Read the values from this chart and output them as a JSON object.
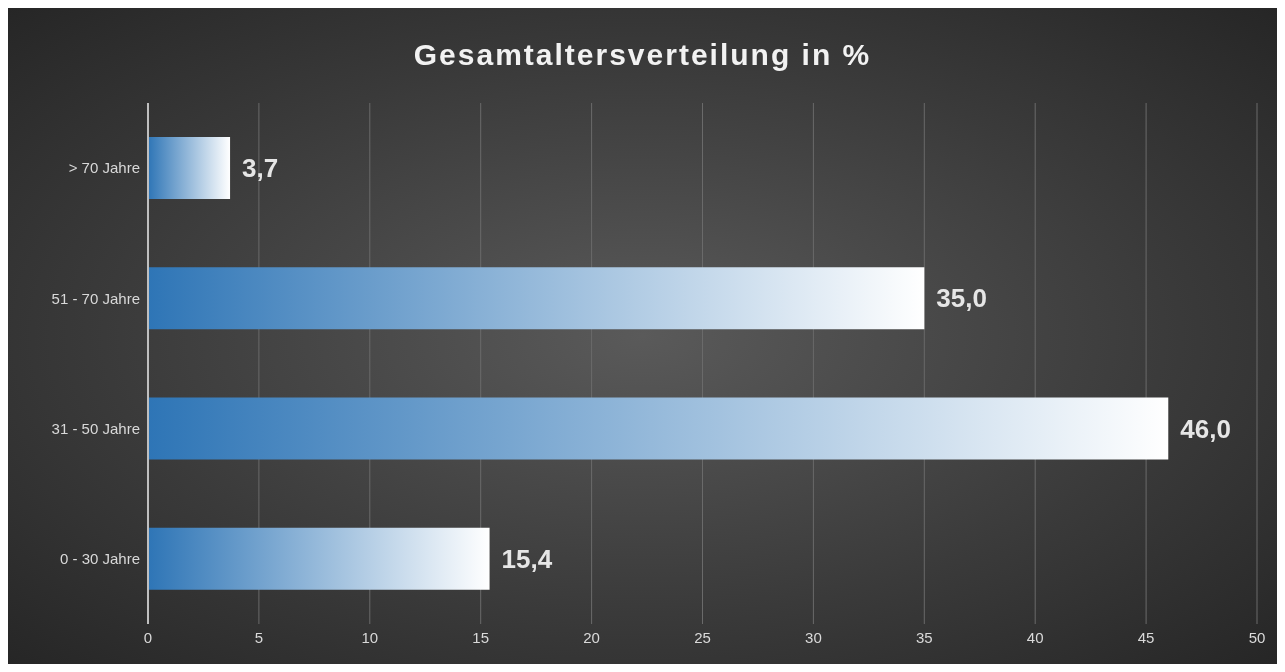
{
  "chart_data": {
    "type": "bar",
    "orientation": "horizontal",
    "title": "Gesamtaltersverteilung in %",
    "categories": [
      "> 70 Jahre",
      "51 - 70 Jahre",
      "31 - 50 Jahre",
      "0 - 30 Jahre"
    ],
    "values": [
      3.7,
      35.0,
      46.0,
      15.4
    ],
    "value_labels": [
      "3,7",
      "35,0",
      "46,0",
      "15,4"
    ],
    "color": "#2e75b6",
    "xlim": [
      0,
      50
    ],
    "xticks": [
      0,
      5,
      10,
      15,
      20,
      25,
      30,
      35,
      40,
      45,
      50
    ],
    "grid": "x"
  }
}
